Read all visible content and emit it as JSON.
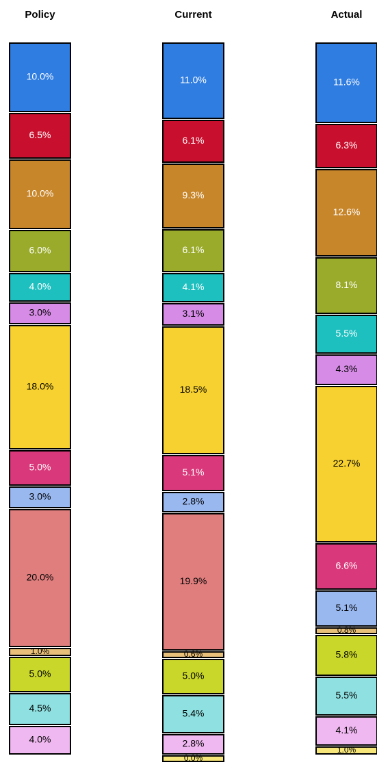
{
  "chart_data": {
    "type": "stacked_column",
    "bars": [
      {
        "name": "Policy",
        "values": [
          10.0,
          6.5,
          10.0,
          6.0,
          4.0,
          3.0,
          18.0,
          5.0,
          3.0,
          20.0,
          1.0,
          5.0,
          4.5,
          4.0
        ],
        "value_labels": [
          "10.0%",
          "6.5%",
          "10.0%",
          "6.0%",
          "4.0%",
          "3.0%",
          "18.0%",
          "5.0%",
          "3.0%",
          "20.0%",
          "1.0%",
          "5.0%",
          "4.5%",
          "4.0%"
        ],
        "colors": [
          "#2f7de1",
          "#c8102e",
          "#c8862a",
          "#9aab2b",
          "#1ebfbf",
          "#d68ce6",
          "#f7d12f",
          "#d9387a",
          "#9ab8f0",
          "#e07e7e",
          "#e8c07a",
          "#c9d62a",
          "#8fe0e0",
          "#f0b8f0"
        ]
      },
      {
        "name": "Current",
        "values": [
          11.0,
          6.1,
          9.3,
          6.1,
          4.1,
          3.1,
          18.5,
          5.1,
          2.8,
          19.9,
          0.6,
          5.0,
          5.4,
          2.8,
          0.0
        ],
        "value_labels": [
          "11.0%",
          "6.1%",
          "9.3%",
          "6.1%",
          "4.1%",
          "3.1%",
          "18.5%",
          "5.1%",
          "2.8%",
          "19.9%",
          "0.6%",
          "5.0%",
          "5.4%",
          "2.8%",
          "0.0%"
        ],
        "colors": [
          "#2f7de1",
          "#c8102e",
          "#c8862a",
          "#9aab2b",
          "#1ebfbf",
          "#d68ce6",
          "#f7d12f",
          "#d9387a",
          "#9ab8f0",
          "#e07e7e",
          "#e8c07a",
          "#c9d62a",
          "#8fe0e0",
          "#f0b8f0",
          "#f7e67a"
        ]
      },
      {
        "name": "Actual",
        "values": [
          11.6,
          6.3,
          12.6,
          8.1,
          5.5,
          4.3,
          22.7,
          6.6,
          5.1,
          0.8,
          5.8,
          5.5,
          4.1,
          1.0
        ],
        "value_labels": [
          "11.6%",
          "6.3%",
          "12.6%",
          "8.1%",
          "5.5%",
          "4.3%",
          "22.7%",
          "6.6%",
          "5.1%",
          "0.8%",
          "5.8%",
          "5.5%",
          "4.1%",
          "1.0%"
        ],
        "colors": [
          "#2f7de1",
          "#c8102e",
          "#c8862a",
          "#9aab2b",
          "#1ebfbf",
          "#d68ce6",
          "#f7d12f",
          "#d9387a",
          "#9ab8f0",
          "#e8c07a",
          "#c9d62a",
          "#8fe0e0",
          "#f0b8f0",
          "#f7e67a"
        ]
      }
    ]
  }
}
